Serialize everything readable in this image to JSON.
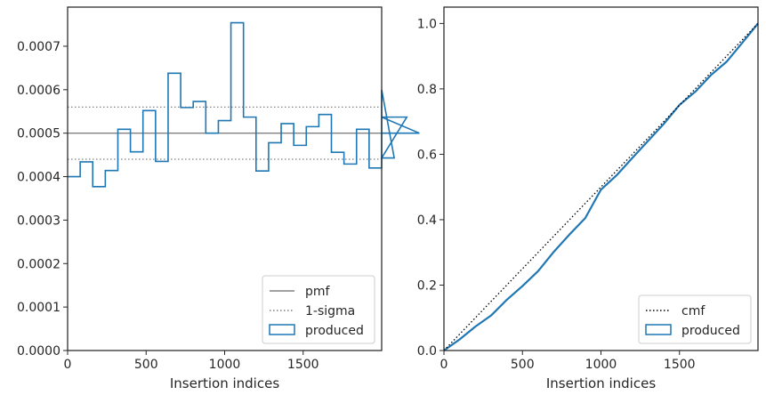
{
  "chart_data": [
    {
      "type": "histogram-step",
      "xlabel": "Insertion indices",
      "ylabel": "",
      "xlim": [
        0,
        2000
      ],
      "ylim": [
        0,
        0.00079
      ],
      "xticks": [
        0,
        500,
        1000,
        1500
      ],
      "xtick_labels": [
        "0",
        "500",
        "1000",
        "1500"
      ],
      "yticks": [
        0,
        0.0001,
        0.0002,
        0.0003,
        0.0004,
        0.0005,
        0.0006,
        0.0007
      ],
      "ytick_labels": [
        "0.0000",
        "0.0001",
        "0.0002",
        "0.0003",
        "0.0004",
        "0.0005",
        "0.0006",
        "0.0007"
      ],
      "legend_position": "lower-right",
      "series": [
        {
          "name": "pmf",
          "style": "solid",
          "color": "#808080",
          "y": 0.0005
        },
        {
          "name": "1-sigma",
          "style": "dotted",
          "color": "#808080",
          "y_values": [
            0.00044,
            0.00056
          ]
        },
        {
          "name": "produced",
          "style": "step",
          "color": "#1f77b4",
          "bin_width": 80,
          "values": [
            0.0004,
            0.000434,
            0.000377,
            0.000414,
            0.000509,
            0.000457,
            0.000552,
            0.000435,
            0.000638,
            0.000559,
            0.000573,
            0.0005,
            0.000529,
            0.000754,
            0.000537,
            0.000413,
            0.000478,
            0.000522,
            0.000472,
            0.000515,
            0.000543,
            0.000456,
            0.000429,
            0.000509,
            0.00042,
            0.0006,
            0.000443,
            0.000537,
            0.0005
          ]
        }
      ]
    },
    {
      "type": "line",
      "xlabel": "Insertion indices",
      "ylabel": "",
      "xlim": [
        0,
        2000
      ],
      "ylim": [
        0,
        1.05
      ],
      "xticks": [
        0,
        500,
        1000,
        1500
      ],
      "xtick_labels": [
        "0",
        "500",
        "1000",
        "1500"
      ],
      "yticks": [
        0,
        0.2,
        0.4,
        0.6,
        0.8,
        1.0
      ],
      "ytick_labels": [
        "0.0",
        "0.2",
        "0.4",
        "0.6",
        "0.8",
        "1.0"
      ],
      "legend_position": "lower-right",
      "series": [
        {
          "name": "cmf",
          "style": "dotted",
          "color": "#000000",
          "x": [
            0,
            2000
          ],
          "y": [
            0,
            1.0
          ]
        },
        {
          "name": "produced",
          "style": "solid",
          "color": "#1f77b4",
          "x": [
            0,
            100,
            200,
            300,
            400,
            500,
            600,
            700,
            800,
            900,
            1000,
            1100,
            1200,
            1300,
            1400,
            1500,
            1600,
            1700,
            1800,
            1900,
            2000
          ],
          "y": [
            0,
            0.034,
            0.073,
            0.107,
            0.155,
            0.197,
            0.243,
            0.302,
            0.355,
            0.405,
            0.492,
            0.536,
            0.589,
            0.641,
            0.693,
            0.751,
            0.791,
            0.842,
            0.883,
            0.941,
            1.0
          ]
        }
      ]
    }
  ]
}
